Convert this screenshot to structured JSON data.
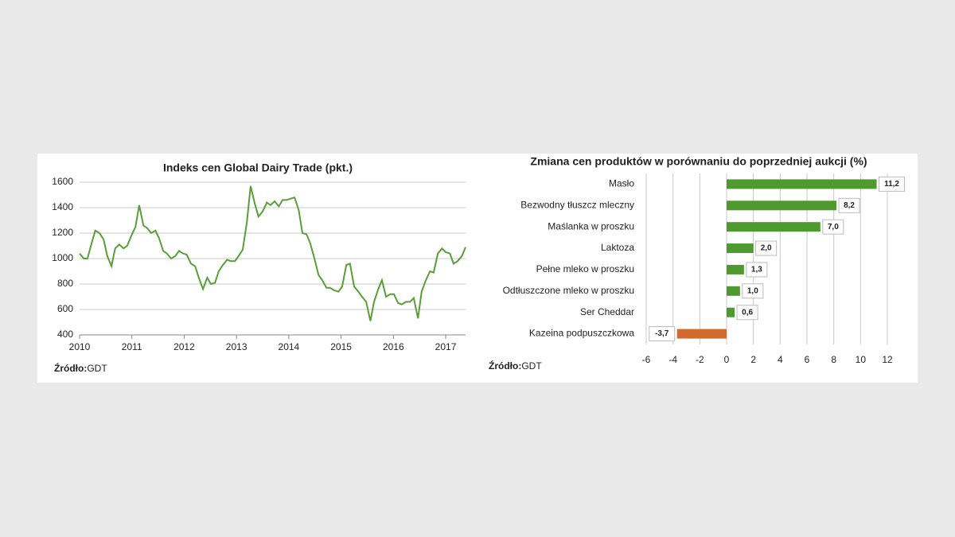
{
  "chart_data": [
    {
      "type": "line",
      "title": "Indeks cen Global Dairy Trade (pkt.)",
      "source_label": "Źródło:",
      "source": "GDT",
      "xlim": [
        2010,
        2017.38
      ],
      "xticks": [
        2010,
        2011,
        2012,
        2013,
        2014,
        2015,
        2016,
        2017
      ],
      "ylim": [
        400,
        1600
      ],
      "yticks": [
        400,
        600,
        800,
        1000,
        1200,
        1400,
        1600
      ],
      "grid": true,
      "x": [
        2010.0,
        2010.08,
        2010.15,
        2010.23,
        2010.3,
        2010.38,
        2010.46,
        2010.53,
        2010.61,
        2010.68,
        2010.76,
        2010.84,
        2010.91,
        2010.99,
        2011.07,
        2011.14,
        2011.22,
        2011.29,
        2011.37,
        2011.45,
        2011.52,
        2011.6,
        2011.67,
        2011.75,
        2011.83,
        2011.9,
        2011.98,
        2012.05,
        2012.13,
        2012.21,
        2012.28,
        2012.36,
        2012.44,
        2012.51,
        2012.59,
        2012.66,
        2012.74,
        2012.82,
        2012.89,
        2012.97,
        2013.04,
        2013.12,
        2013.2,
        2013.27,
        2013.35,
        2013.42,
        2013.5,
        2013.58,
        2013.65,
        2013.73,
        2013.81,
        2013.88,
        2013.96,
        2014.03,
        2014.11,
        2014.19,
        2014.26,
        2014.34,
        2014.41,
        2014.49,
        2014.57,
        2014.64,
        2014.72,
        2014.79,
        2014.87,
        2014.95,
        2015.02,
        2015.1,
        2015.17,
        2015.25,
        2015.33,
        2015.4,
        2015.48,
        2015.56,
        2015.63,
        2015.71,
        2015.78,
        2015.86,
        2015.94,
        2016.01,
        2016.09,
        2016.16,
        2016.24,
        2016.32,
        2016.39,
        2016.47,
        2016.54,
        2016.62,
        2016.7,
        2016.77,
        2016.85,
        2016.93,
        2017.0,
        2017.08,
        2017.15,
        2017.23,
        2017.31,
        2017.38
      ],
      "series": [
        {
          "name": "GDT",
          "color": "#5a9e38",
          "values": [
            1040,
            1000,
            1000,
            1120,
            1220,
            1200,
            1150,
            1020,
            940,
            1080,
            1110,
            1080,
            1100,
            1180,
            1250,
            1420,
            1260,
            1240,
            1200,
            1220,
            1160,
            1060,
            1040,
            1000,
            1020,
            1060,
            1040,
            1030,
            960,
            940,
            850,
            760,
            850,
            800,
            810,
            900,
            950,
            990,
            980,
            980,
            1020,
            1070,
            1290,
            1570,
            1430,
            1330,
            1370,
            1440,
            1420,
            1450,
            1410,
            1460,
            1460,
            1470,
            1480,
            1380,
            1200,
            1190,
            1120,
            1000,
            870,
            830,
            770,
            770,
            750,
            740,
            780,
            950,
            960,
            780,
            740,
            700,
            660,
            510,
            660,
            760,
            830,
            700,
            720,
            720,
            650,
            640,
            660,
            660,
            690,
            530,
            740,
            830,
            900,
            890,
            1040,
            1080,
            1050,
            1040,
            960,
            980,
            1020,
            1090
          ]
        }
      ]
    },
    {
      "type": "bar",
      "orientation": "horizontal",
      "title": "Zmiana cen produktów w porównaniu do poprzedniej aukcji (%)",
      "source_label": "Źródło:",
      "source": "GDT",
      "categories": [
        "Masło",
        "Bezwodny tłuszcz mleczny",
        "Maślanka w proszku",
        "Laktoza",
        "Pełne mleko w proszku",
        "Odtłuszczone mleko w proszku",
        "Ser Cheddar",
        "Kazeina podpuszczkowa"
      ],
      "values": [
        11.2,
        8.2,
        7.0,
        2.0,
        1.3,
        1.0,
        0.6,
        -3.7
      ],
      "value_labels": [
        "11,2",
        "8,2",
        "7,0",
        "2,0",
        "1,3",
        "1,0",
        "0,6",
        "-3,7"
      ],
      "colors": [
        "#4e9a2e",
        "#4e9a2e",
        "#4e9a2e",
        "#4e9a2e",
        "#4e9a2e",
        "#4e9a2e",
        "#4e9a2e",
        "#d2692d"
      ],
      "xlim": [
        -6,
        12
      ],
      "xticks": [
        -6,
        -4,
        -2,
        0,
        2,
        4,
        6,
        8,
        10,
        12
      ],
      "grid": true
    }
  ]
}
